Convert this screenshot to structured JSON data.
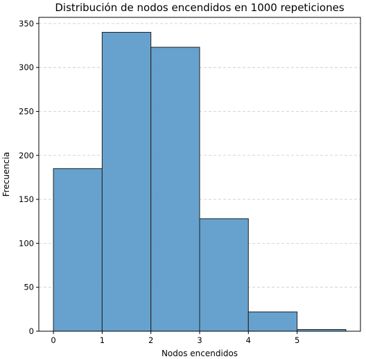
{
  "chart_data": {
    "type": "bar",
    "title": "Distribución de nodos encendidos en 1000 repeticiones",
    "xlabel": "Nodos encendidos",
    "ylabel": "Frecuencia",
    "bins": [
      {
        "start": 0,
        "end": 1,
        "value": 185
      },
      {
        "start": 1,
        "end": 2,
        "value": 340
      },
      {
        "start": 2,
        "end": 3,
        "value": 323
      },
      {
        "start": 3,
        "end": 4,
        "value": 128
      },
      {
        "start": 4,
        "end": 5,
        "value": 22
      },
      {
        "start": 5,
        "end": 6,
        "value": 2
      }
    ],
    "xticks": [
      "0",
      "1",
      "2",
      "3",
      "4",
      "5"
    ],
    "yticks": [
      "0",
      "50",
      "100",
      "150",
      "200",
      "250",
      "300",
      "350"
    ],
    "xlim": [
      -0.3,
      6.3
    ],
    "ylim": [
      0,
      357
    ],
    "grid": "y-dashed",
    "bar_color": "#5f9dcb",
    "bar_alpha": 0.95
  }
}
